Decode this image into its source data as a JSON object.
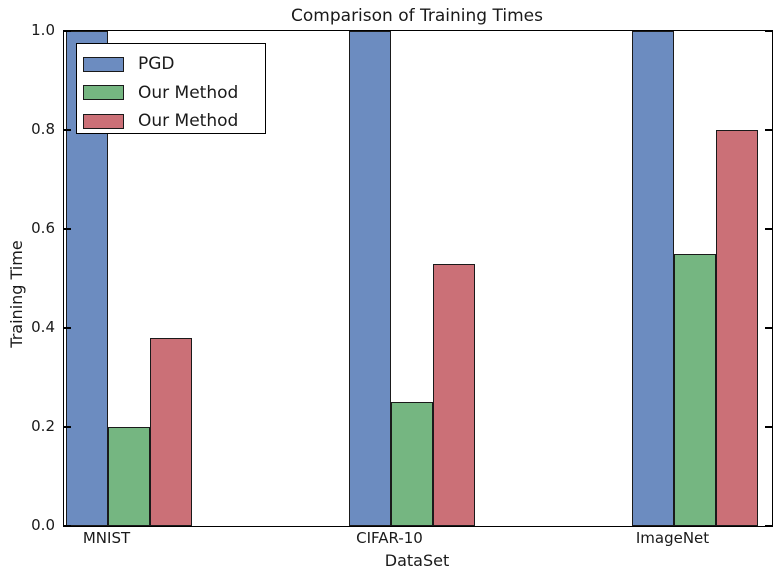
{
  "figure": {
    "background": "#ffffff"
  },
  "chart_data": {
    "type": "bar",
    "title": "Comparison of Training Times",
    "xlabel": "DataSet",
    "ylabel": "Training Time",
    "categories": [
      "MNIST",
      "CIFAR-10",
      "ImageNet"
    ],
    "series": [
      {
        "name": "PGD",
        "color": "#6c8cc0",
        "values": [
          1.0,
          1.0,
          1.0
        ]
      },
      {
        "name": "Our Method",
        "color": "#75b681",
        "values": [
          0.2,
          0.25,
          0.55
        ]
      },
      {
        "name": "Our Method",
        "color": "#cb7077",
        "values": [
          0.38,
          0.53,
          0.8
        ]
      }
    ],
    "ylim": [
      0.0,
      1.0
    ],
    "yticks": [
      0.0,
      0.2,
      0.4,
      0.6,
      0.8,
      1.0
    ],
    "ytick_labels": [
      "0.0",
      "0.2",
      "0.4",
      "0.6",
      "0.8",
      "1.0"
    ],
    "xtick_labels": [
      "MNIST",
      "CIFAR-10",
      "ImageNet"
    ],
    "grid": false,
    "bar_edge_color": "#1a1a1a",
    "legend": {
      "position": "upper-left",
      "entries": [
        "PGD",
        "Our Method",
        "Our Method"
      ]
    }
  }
}
